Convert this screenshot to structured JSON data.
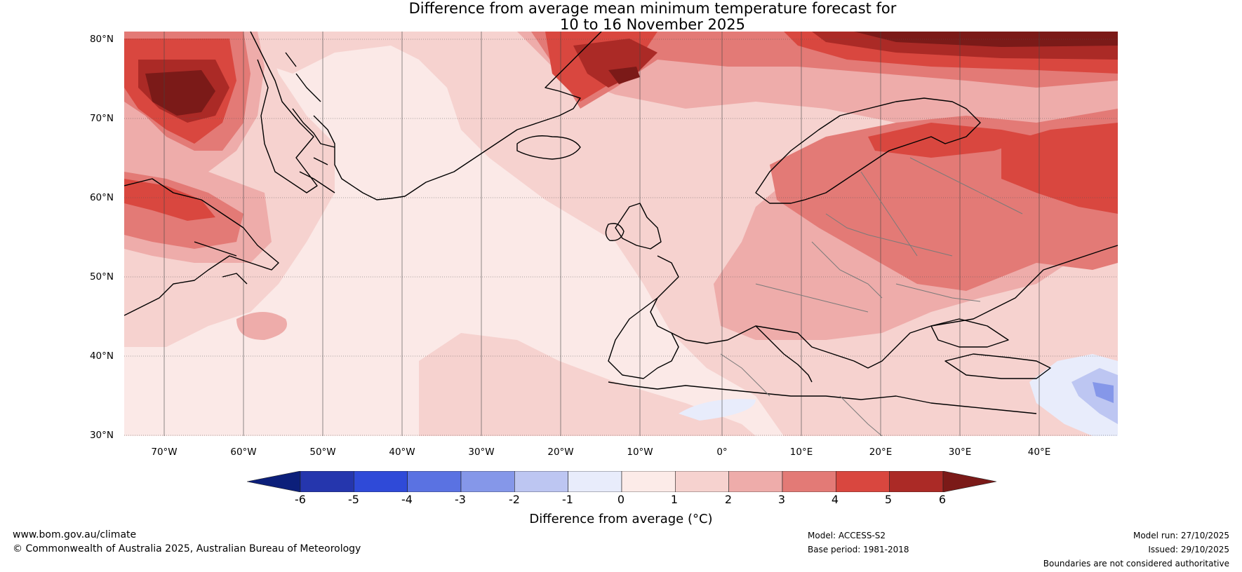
{
  "title_line1": "Difference from average mean minimum temperature forecast for",
  "title_line2": "10 to 16 November 2025",
  "map": {
    "lat_labels": [
      "80°N",
      "70°N",
      "60°N",
      "50°N",
      "40°N",
      "30°N"
    ],
    "lon_labels": [
      "70°W",
      "60°W",
      "50°W",
      "40°W",
      "30°W",
      "20°W",
      "10°W",
      "0°",
      "10°E",
      "20°E",
      "30°E",
      "40°E"
    ],
    "lat_range": [
      30,
      81
    ],
    "lon_range": [
      -75,
      50
    ]
  },
  "colorbar": {
    "ticks": [
      "-6",
      "-5",
      "-4",
      "-3",
      "-2",
      "-1",
      "0",
      "1",
      "2",
      "3",
      "4",
      "5",
      "6"
    ],
    "colors": [
      "#0c1f7a",
      "#2536ad",
      "#2f4ad8",
      "#5a72e2",
      "#8597e9",
      "#bdc6f2",
      "#e8ecfb",
      "#fcebe8",
      "#f6d2cf",
      "#eeacaa",
      "#e37a76",
      "#d9473f",
      "#ab2a26",
      "#7b1a18"
    ],
    "label": "Difference from average (°C)"
  },
  "footer": {
    "website": "www.bom.gov.au/climate",
    "copyright": "© Commonwealth of Australia 2025, Australian Bureau of Meteorology",
    "model": "Model: ACCESS-S2",
    "base_period": "Base period: 1981-2018",
    "model_run": "Model run: 27/10/2025",
    "issued": "Issued: 29/10/2025",
    "disclaimer": "Boundaries are not considered authoritative"
  }
}
